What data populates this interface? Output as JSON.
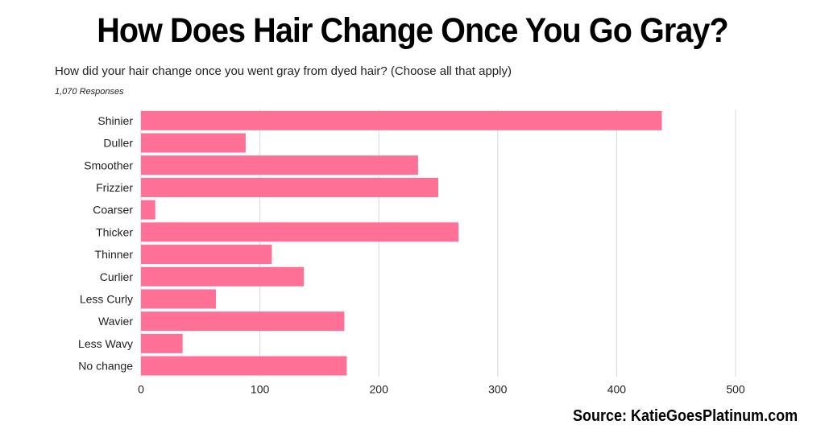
{
  "header": {
    "title": "How Does Hair Change Once You Go Gray?",
    "subtitle": "How did your hair change once you went gray from dyed hair? (Choose all that apply)",
    "responses": "1,070 Responses"
  },
  "footer": {
    "source": "Source: KatieGoesPlatinum.com"
  },
  "chart_data": {
    "type": "bar",
    "orientation": "horizontal",
    "title": "How Does Hair Change Once You Go Gray?",
    "subtitle": "How did your hair change once you went gray from dyed hair? (Choose all that apply)",
    "xlabel": "",
    "ylabel": "",
    "categories": [
      "Shinier",
      "Duller",
      "Smoother",
      "Frizzier",
      "Coarser",
      "Thicker",
      "Thinner",
      "Curlier",
      "Less Curly",
      "Wavier",
      "Less Wavy",
      "No change"
    ],
    "values": [
      438,
      88,
      233,
      250,
      12,
      267,
      110,
      137,
      63,
      171,
      35,
      173
    ],
    "xlim": [
      0,
      500
    ],
    "xticks": [
      0,
      100,
      200,
      300,
      400,
      500
    ],
    "grid": true,
    "legend": "none",
    "bar_color": "#ff7096",
    "grid_color": "#d9d9d9"
  }
}
